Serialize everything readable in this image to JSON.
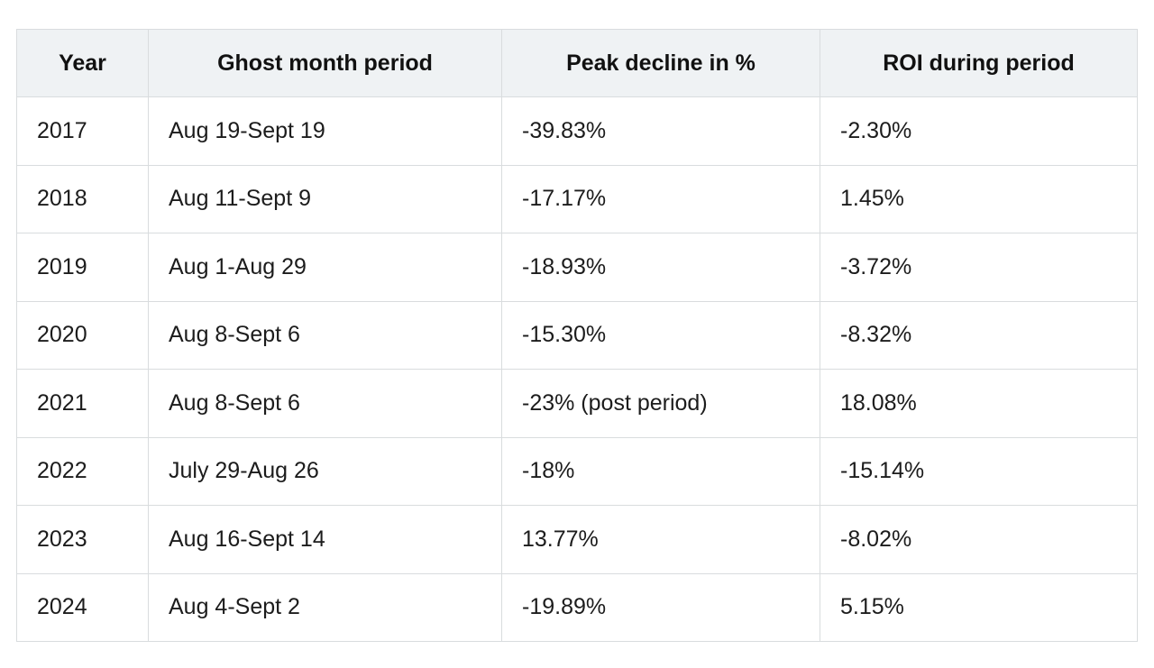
{
  "table": {
    "headers": [
      "Year",
      "Ghost month period",
      "Peak decline in %",
      "ROI during period"
    ],
    "rows": [
      [
        "2017",
        "Aug 19-Sept 19",
        "-39.83%",
        "-2.30%"
      ],
      [
        "2018",
        "Aug 11-Sept 9",
        "-17.17%",
        "1.45%"
      ],
      [
        "2019",
        "Aug 1-Aug 29",
        "-18.93%",
        "-3.72%"
      ],
      [
        "2020",
        "Aug 8-Sept 6",
        "-15.30%",
        "-8.32%"
      ],
      [
        "2021",
        "Aug 8-Sept 6",
        "-23% (post period)",
        "18.08%"
      ],
      [
        "2022",
        "July 29-Aug 26",
        "-18%",
        "-15.14%"
      ],
      [
        "2023",
        "Aug 16-Sept 14",
        "13.77%",
        "-8.02%"
      ],
      [
        "2024",
        "Aug 4-Sept 2",
        "-19.89%",
        "5.15%"
      ]
    ]
  },
  "colors": {
    "header_bg": "#eff2f4",
    "border": "#d9dcde",
    "text": "#1c1c1c"
  }
}
